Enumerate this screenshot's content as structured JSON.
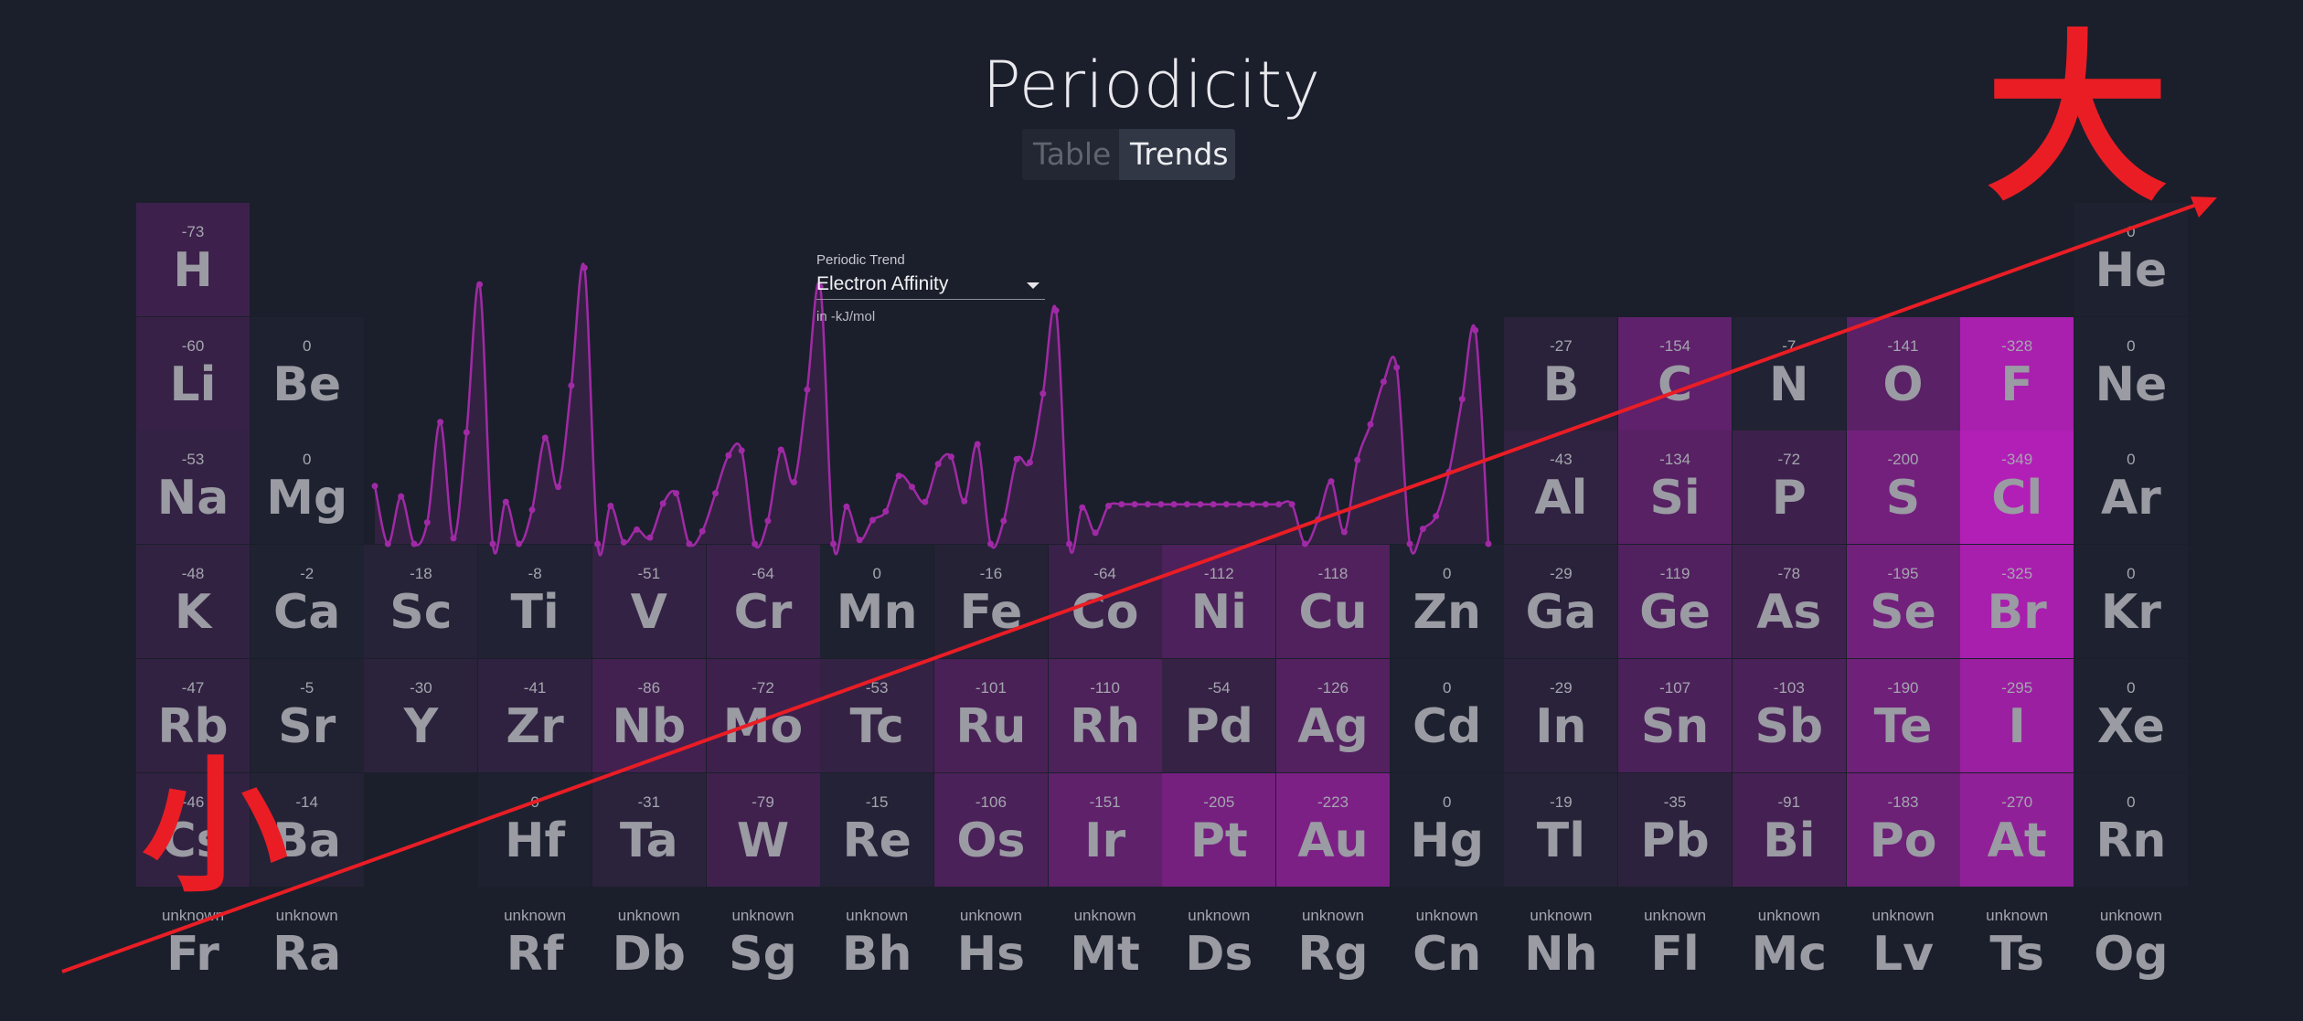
{
  "app": {
    "title": "Periodicity",
    "tabs": [
      {
        "label": "Table",
        "active": false
      },
      {
        "label": "Trends",
        "active": true
      }
    ]
  },
  "trend": {
    "label": "Periodic Trend",
    "selected": "Electron Affinity",
    "unit": "in -kJ/mol"
  },
  "colors": {
    "background": "#1b1f2b",
    "cell_base": "#1e2230",
    "accent_max": "#b21fb6",
    "curve": "#a02aa6",
    "annotation_red": "#ea1d25"
  },
  "annotations": {
    "large_label": "大",
    "small_label": "小"
  },
  "elements": [
    {
      "symbol": "H",
      "value": "-73",
      "row": 1,
      "col": 1
    },
    {
      "symbol": "He",
      "value": "0",
      "row": 1,
      "col": 18
    },
    {
      "symbol": "Li",
      "value": "-60",
      "row": 2,
      "col": 1
    },
    {
      "symbol": "Be",
      "value": "0",
      "row": 2,
      "col": 2
    },
    {
      "symbol": "B",
      "value": "-27",
      "row": 2,
      "col": 13
    },
    {
      "symbol": "C",
      "value": "-154",
      "row": 2,
      "col": 14
    },
    {
      "symbol": "N",
      "value": "-7",
      "row": 2,
      "col": 15
    },
    {
      "symbol": "O",
      "value": "-141",
      "row": 2,
      "col": 16
    },
    {
      "symbol": "F",
      "value": "-328",
      "row": 2,
      "col": 17
    },
    {
      "symbol": "Ne",
      "value": "0",
      "row": 2,
      "col": 18
    },
    {
      "symbol": "Na",
      "value": "-53",
      "row": 3,
      "col": 1
    },
    {
      "symbol": "Mg",
      "value": "0",
      "row": 3,
      "col": 2
    },
    {
      "symbol": "Al",
      "value": "-43",
      "row": 3,
      "col": 13
    },
    {
      "symbol": "Si",
      "value": "-134",
      "row": 3,
      "col": 14
    },
    {
      "symbol": "P",
      "value": "-72",
      "row": 3,
      "col": 15
    },
    {
      "symbol": "S",
      "value": "-200",
      "row": 3,
      "col": 16
    },
    {
      "symbol": "Cl",
      "value": "-349",
      "row": 3,
      "col": 17
    },
    {
      "symbol": "Ar",
      "value": "0",
      "row": 3,
      "col": 18
    },
    {
      "symbol": "K",
      "value": "-48",
      "row": 4,
      "col": 1
    },
    {
      "symbol": "Ca",
      "value": "-2",
      "row": 4,
      "col": 2
    },
    {
      "symbol": "Sc",
      "value": "-18",
      "row": 4,
      "col": 3
    },
    {
      "symbol": "Ti",
      "value": "-8",
      "row": 4,
      "col": 4
    },
    {
      "symbol": "V",
      "value": "-51",
      "row": 4,
      "col": 5
    },
    {
      "symbol": "Cr",
      "value": "-64",
      "row": 4,
      "col": 6
    },
    {
      "symbol": "Mn",
      "value": "0",
      "row": 4,
      "col": 7
    },
    {
      "symbol": "Fe",
      "value": "-16",
      "row": 4,
      "col": 8
    },
    {
      "symbol": "Co",
      "value": "-64",
      "row": 4,
      "col": 9
    },
    {
      "symbol": "Ni",
      "value": "-112",
      "row": 4,
      "col": 10
    },
    {
      "symbol": "Cu",
      "value": "-118",
      "row": 4,
      "col": 11
    },
    {
      "symbol": "Zn",
      "value": "0",
      "row": 4,
      "col": 12
    },
    {
      "symbol": "Ga",
      "value": "-29",
      "row": 4,
      "col": 13
    },
    {
      "symbol": "Ge",
      "value": "-119",
      "row": 4,
      "col": 14
    },
    {
      "symbol": "As",
      "value": "-78",
      "row": 4,
      "col": 15
    },
    {
      "symbol": "Se",
      "value": "-195",
      "row": 4,
      "col": 16
    },
    {
      "symbol": "Br",
      "value": "-325",
      "row": 4,
      "col": 17
    },
    {
      "symbol": "Kr",
      "value": "0",
      "row": 4,
      "col": 18
    },
    {
      "symbol": "Rb",
      "value": "-47",
      "row": 5,
      "col": 1
    },
    {
      "symbol": "Sr",
      "value": "-5",
      "row": 5,
      "col": 2
    },
    {
      "symbol": "Y",
      "value": "-30",
      "row": 5,
      "col": 3
    },
    {
      "symbol": "Zr",
      "value": "-41",
      "row": 5,
      "col": 4
    },
    {
      "symbol": "Nb",
      "value": "-86",
      "row": 5,
      "col": 5
    },
    {
      "symbol": "Mo",
      "value": "-72",
      "row": 5,
      "col": 6
    },
    {
      "symbol": "Tc",
      "value": "-53",
      "row": 5,
      "col": 7
    },
    {
      "symbol": "Ru",
      "value": "-101",
      "row": 5,
      "col": 8
    },
    {
      "symbol": "Rh",
      "value": "-110",
      "row": 5,
      "col": 9
    },
    {
      "symbol": "Pd",
      "value": "-54",
      "row": 5,
      "col": 10
    },
    {
      "symbol": "Ag",
      "value": "-126",
      "row": 5,
      "col": 11
    },
    {
      "symbol": "Cd",
      "value": "0",
      "row": 5,
      "col": 12
    },
    {
      "symbol": "In",
      "value": "-29",
      "row": 5,
      "col": 13
    },
    {
      "symbol": "Sn",
      "value": "-107",
      "row": 5,
      "col": 14
    },
    {
      "symbol": "Sb",
      "value": "-103",
      "row": 5,
      "col": 15
    },
    {
      "symbol": "Te",
      "value": "-190",
      "row": 5,
      "col": 16
    },
    {
      "symbol": "I",
      "value": "-295",
      "row": 5,
      "col": 17
    },
    {
      "symbol": "Xe",
      "value": "0",
      "row": 5,
      "col": 18
    },
    {
      "symbol": "Cs",
      "value": "-46",
      "row": 6,
      "col": 1
    },
    {
      "symbol": "Ba",
      "value": "-14",
      "row": 6,
      "col": 2
    },
    {
      "symbol": "Hf",
      "value": "0",
      "row": 6,
      "col": 4
    },
    {
      "symbol": "Ta",
      "value": "-31",
      "row": 6,
      "col": 5
    },
    {
      "symbol": "W",
      "value": "-79",
      "row": 6,
      "col": 6
    },
    {
      "symbol": "Re",
      "value": "-15",
      "row": 6,
      "col": 7
    },
    {
      "symbol": "Os",
      "value": "-106",
      "row": 6,
      "col": 8
    },
    {
      "symbol": "Ir",
      "value": "-151",
      "row": 6,
      "col": 9
    },
    {
      "symbol": "Pt",
      "value": "-205",
      "row": 6,
      "col": 10
    },
    {
      "symbol": "Au",
      "value": "-223",
      "row": 6,
      "col": 11
    },
    {
      "symbol": "Hg",
      "value": "0",
      "row": 6,
      "col": 12
    },
    {
      "symbol": "Tl",
      "value": "-19",
      "row": 6,
      "col": 13
    },
    {
      "symbol": "Pb",
      "value": "-35",
      "row": 6,
      "col": 14
    },
    {
      "symbol": "Bi",
      "value": "-91",
      "row": 6,
      "col": 15
    },
    {
      "symbol": "Po",
      "value": "-183",
      "row": 6,
      "col": 16
    },
    {
      "symbol": "At",
      "value": "-270",
      "row": 6,
      "col": 17
    },
    {
      "symbol": "Rn",
      "value": "0",
      "row": 6,
      "col": 18
    },
    {
      "symbol": "Fr",
      "value": "unknown",
      "row": 7,
      "col": 1
    },
    {
      "symbol": "Ra",
      "value": "unknown",
      "row": 7,
      "col": 2
    },
    {
      "symbol": "Rf",
      "value": "unknown",
      "row": 7,
      "col": 4
    },
    {
      "symbol": "Db",
      "value": "unknown",
      "row": 7,
      "col": 5
    },
    {
      "symbol": "Sg",
      "value": "unknown",
      "row": 7,
      "col": 6
    },
    {
      "symbol": "Bh",
      "value": "unknown",
      "row": 7,
      "col": 7
    },
    {
      "symbol": "Hs",
      "value": "unknown",
      "row": 7,
      "col": 8
    },
    {
      "symbol": "Mt",
      "value": "unknown",
      "row": 7,
      "col": 9
    },
    {
      "symbol": "Ds",
      "value": "unknown",
      "row": 7,
      "col": 10
    },
    {
      "symbol": "Rg",
      "value": "unknown",
      "row": 7,
      "col": 11
    },
    {
      "symbol": "Cn",
      "value": "unknown",
      "row": 7,
      "col": 12
    },
    {
      "symbol": "Nh",
      "value": "unknown",
      "row": 7,
      "col": 13
    },
    {
      "symbol": "Fl",
      "value": "unknown",
      "row": 7,
      "col": 14
    },
    {
      "symbol": "Mc",
      "value": "unknown",
      "row": 7,
      "col": 15
    },
    {
      "symbol": "Lv",
      "value": "unknown",
      "row": 7,
      "col": 16
    },
    {
      "symbol": "Ts",
      "value": "unknown",
      "row": 7,
      "col": 17
    },
    {
      "symbol": "Og",
      "value": "unknown",
      "row": 7,
      "col": 18
    }
  ],
  "trend_curve": [
    73,
    0,
    60,
    0,
    27,
    154,
    7,
    141,
    328,
    0,
    53,
    0,
    43,
    134,
    72,
    200,
    349,
    0,
    48,
    2,
    18,
    8,
    51,
    64,
    0,
    16,
    64,
    112,
    118,
    0,
    29,
    119,
    78,
    195,
    325,
    0,
    47,
    5,
    30,
    41,
    86,
    72,
    53,
    101,
    110,
    54,
    126,
    0,
    29,
    107,
    103,
    190,
    295,
    0,
    46,
    14,
    48,
    50,
    50,
    50,
    50,
    50,
    50,
    50,
    50,
    50,
    50,
    50,
    50,
    50,
    50,
    0,
    31,
    79,
    15,
    106,
    151,
    205,
    223,
    0,
    19,
    35,
    91,
    183,
    270,
    0
  ]
}
